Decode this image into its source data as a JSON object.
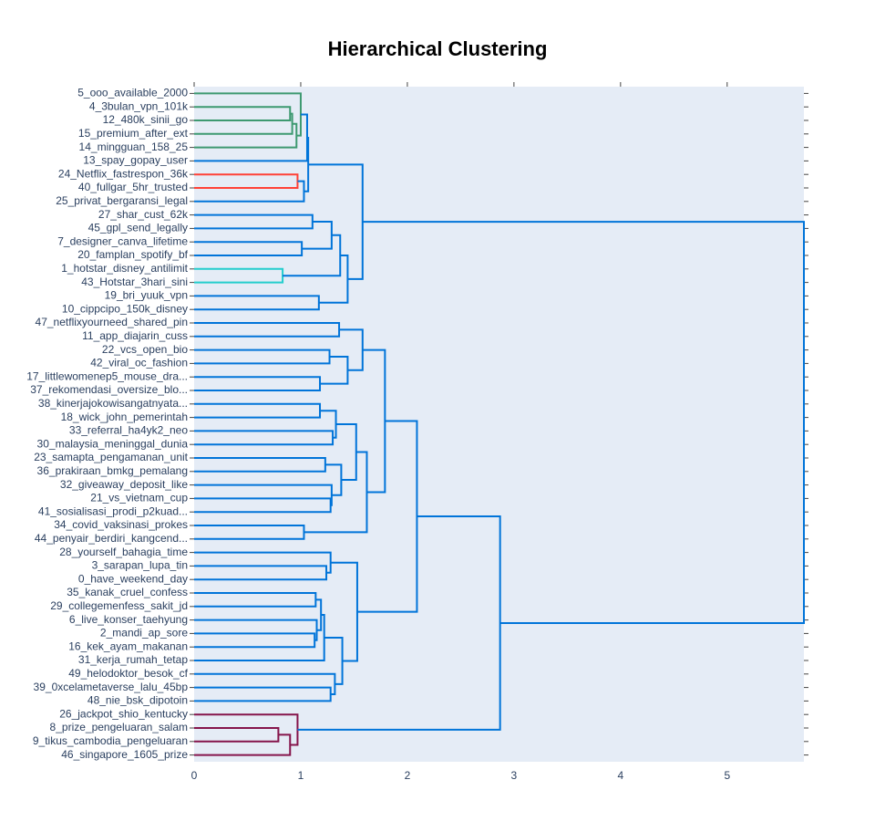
{
  "chart_data": {
    "type": "dendrogram",
    "title": "Hierarchical Clustering",
    "labels": [
      "5_ooo_available_2000",
      "4_3bulan_vpn_101k",
      "12_480k_sinii_go",
      "15_premium_after_ext",
      "14_mingguan_158_25",
      "13_spay_gopay_user",
      "24_Netflix_fastrespon_36k",
      "40_fullgar_5hr_trusted",
      "25_privat_bergaransi_legal",
      "27_shar_cust_62k",
      "45_gpl_send_legally",
      "7_designer_canva_lifetime",
      "20_famplan_spotify_bf",
      "1_hotstar_disney_antilimit",
      "43_Hotstar_3hari_sini",
      "19_bri_yuuk_vpn",
      "10_cippcipo_150k_disney",
      "47_netflixyourneed_shared_pin",
      "11_app_diajarin_cuss",
      "22_vcs_open_bio",
      "42_viral_oc_fashion",
      "17_littlewomenep5_mouse_dra...",
      "37_rekomendasi_oversize_blo...",
      "38_kinerjajokowisangatnyata...",
      "18_wick_john_pemerintah",
      "33_referral_ha4yk2_neo",
      "30_malaysia_meninggal_dunia",
      "23_samapta_pengamanan_unit",
      "36_prakiraan_bmkg_pemalang",
      "32_giveaway_deposit_like",
      "21_vs_vietnam_cup",
      "41_sosialisasi_prodi_p2kuad...",
      "34_covid_vaksinasi_prokes",
      "44_penyair_berdiri_kangcend...",
      "28_yourself_bahagia_time",
      "3_sarapan_lupa_tin",
      "0_have_weekend_day",
      "35_kanak_cruel_confess",
      "29_collegemenfess_sakit_jd",
      "6_live_konser_taehyung",
      "2_mandi_ap_sore",
      "16_kek_ayam_makanan",
      "31_kerja_rumah_tetap",
      "49_helodoktor_besok_cf",
      "39_0xcelametaverse_lalu_45bp",
      "48_nie_bsk_dipotoin",
      "26_jackpot_shio_kentucky",
      "8_prize_pengeluaran_salam",
      "9_tikus_cambodia_pengeluaran",
      "46_singapore_1605_prize"
    ],
    "links": [
      {
        "left": 1,
        "right": 2,
        "height": 0.9,
        "color": "#3d9970"
      },
      {
        "left": 50,
        "right": 3,
        "height": 0.92,
        "color": "#3d9970"
      },
      {
        "left": 51,
        "right": 4,
        "height": 0.96,
        "color": "#3d9970"
      },
      {
        "left": 0,
        "right": 52,
        "height": 1.0,
        "color": "#3d9970"
      },
      {
        "left": 6,
        "right": 7,
        "height": 0.97,
        "color": "#ff4136"
      },
      {
        "left": 13,
        "right": 14,
        "height": 0.83,
        "color": "#23cdcd"
      },
      {
        "left": 47,
        "right": 48,
        "height": 0.79,
        "color": "#85144b"
      },
      {
        "left": 56,
        "right": 49,
        "height": 0.9,
        "color": "#85144b"
      },
      {
        "left": 46,
        "right": 57,
        "height": 0.97,
        "color": "#85144b"
      },
      {
        "left": 53,
        "right": 5,
        "height": 1.06,
        "color": "#0074d9"
      },
      {
        "left": 54,
        "right": 8,
        "height": 1.03,
        "color": "#0074d9"
      },
      {
        "left": 59,
        "right": 60,
        "height": 1.07,
        "color": "#0074d9"
      },
      {
        "left": 9,
        "right": 10,
        "height": 1.11,
        "color": "#0074d9"
      },
      {
        "left": 11,
        "right": 12,
        "height": 1.01,
        "color": "#0074d9"
      },
      {
        "left": 62,
        "right": 63,
        "height": 1.29,
        "color": "#0074d9"
      },
      {
        "left": 64,
        "right": 55,
        "height": 1.37,
        "color": "#0074d9"
      },
      {
        "left": 15,
        "right": 16,
        "height": 1.17,
        "color": "#0074d9"
      },
      {
        "left": 65,
        "right": 66,
        "height": 1.44,
        "color": "#0074d9"
      },
      {
        "left": 61,
        "right": 67,
        "height": 1.58,
        "color": "#0074d9"
      },
      {
        "left": 17,
        "right": 18,
        "height": 1.36,
        "color": "#0074d9"
      },
      {
        "left": 19,
        "right": 20,
        "height": 1.27,
        "color": "#0074d9"
      },
      {
        "left": 21,
        "right": 22,
        "height": 1.18,
        "color": "#0074d9"
      },
      {
        "left": 70,
        "right": 71,
        "height": 1.44,
        "color": "#0074d9"
      },
      {
        "left": 69,
        "right": 72,
        "height": 1.58,
        "color": "#0074d9"
      },
      {
        "left": 23,
        "right": 24,
        "height": 1.18,
        "color": "#0074d9"
      },
      {
        "left": 25,
        "right": 26,
        "height": 1.3,
        "color": "#0074d9"
      },
      {
        "left": 74,
        "right": 75,
        "height": 1.33,
        "color": "#0074d9"
      },
      {
        "left": 27,
        "right": 28,
        "height": 1.23,
        "color": "#0074d9"
      },
      {
        "left": 30,
        "right": 31,
        "height": 1.28,
        "color": "#0074d9"
      },
      {
        "left": 29,
        "right": 78,
        "height": 1.29,
        "color": "#0074d9"
      },
      {
        "left": 77,
        "right": 79,
        "height": 1.38,
        "color": "#0074d9"
      },
      {
        "left": 76,
        "right": 80,
        "height": 1.52,
        "color": "#0074d9"
      },
      {
        "left": 32,
        "right": 33,
        "height": 1.03,
        "color": "#0074d9"
      },
      {
        "left": 81,
        "right": 82,
        "height": 1.62,
        "color": "#0074d9"
      },
      {
        "left": 73,
        "right": 83,
        "height": 1.79,
        "color": "#0074d9"
      },
      {
        "left": 35,
        "right": 36,
        "height": 1.24,
        "color": "#0074d9"
      },
      {
        "left": 34,
        "right": 85,
        "height": 1.28,
        "color": "#0074d9"
      },
      {
        "left": 37,
        "right": 38,
        "height": 1.14,
        "color": "#0074d9"
      },
      {
        "left": 40,
        "right": 41,
        "height": 1.13,
        "color": "#0074d9"
      },
      {
        "left": 39,
        "right": 88,
        "height": 1.15,
        "color": "#0074d9"
      },
      {
        "left": 87,
        "right": 89,
        "height": 1.19,
        "color": "#0074d9"
      },
      {
        "left": 90,
        "right": 42,
        "height": 1.22,
        "color": "#0074d9"
      },
      {
        "left": 44,
        "right": 45,
        "height": 1.28,
        "color": "#0074d9"
      },
      {
        "left": 43,
        "right": 92,
        "height": 1.32,
        "color": "#0074d9"
      },
      {
        "left": 91,
        "right": 93,
        "height": 1.39,
        "color": "#0074d9"
      },
      {
        "left": 86,
        "right": 94,
        "height": 1.53,
        "color": "#0074d9"
      },
      {
        "left": 84,
        "right": 95,
        "height": 2.09,
        "color": "#0074d9"
      },
      {
        "left": 96,
        "right": 58,
        "height": 2.87,
        "color": "#0074d9"
      },
      {
        "left": 68,
        "right": 97,
        "height": 5.72,
        "color": "#0074d9"
      }
    ],
    "xlim": [
      0,
      5.72
    ],
    "xticks": [
      0,
      1,
      2,
      3,
      4,
      5
    ]
  }
}
